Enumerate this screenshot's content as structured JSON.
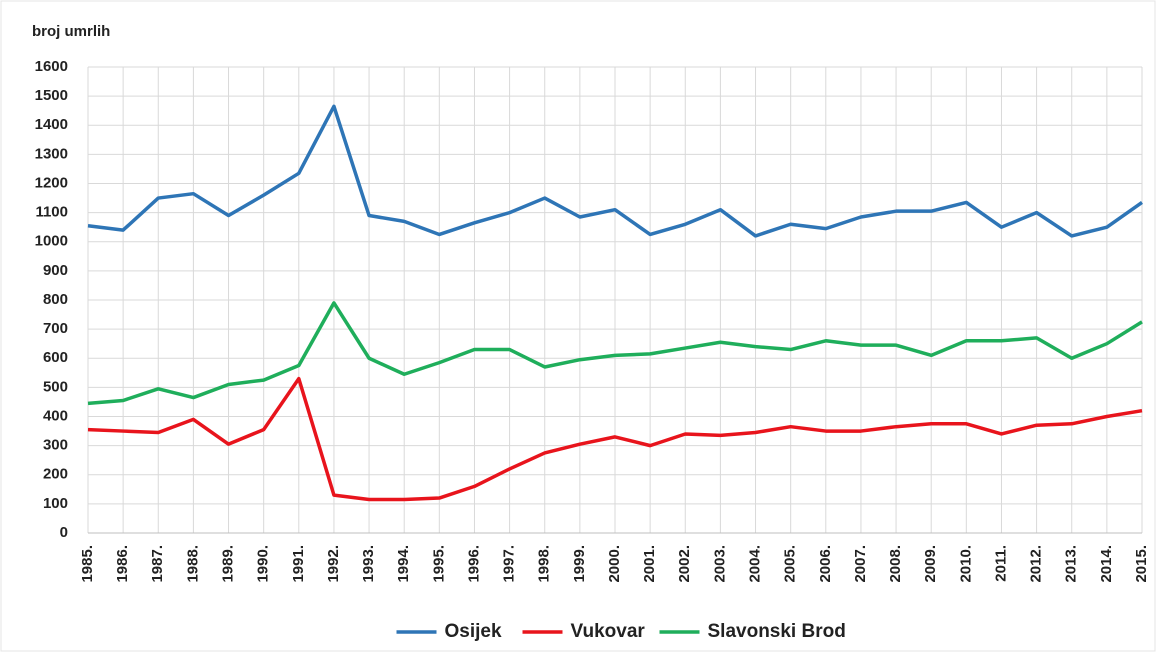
{
  "chart_data": {
    "type": "line",
    "y_label": "broj umrlih",
    "categories": [
      "1985.",
      "1986.",
      "1987.",
      "1988.",
      "1989.",
      "1990.",
      "1991.",
      "1992.",
      "1993.",
      "1994.",
      "1995.",
      "1996.",
      "1997.",
      "1998.",
      "1999.",
      "2000.",
      "2001.",
      "2002.",
      "2003.",
      "2004.",
      "2005.",
      "2006.",
      "2007.",
      "2008.",
      "2009.",
      "2010.",
      "2011.",
      "2012.",
      "2013.",
      "2014.",
      "2015."
    ],
    "series": [
      {
        "name": "Osijek",
        "color": "#2e75b6",
        "values": [
          1055,
          1040,
          1150,
          1165,
          1090,
          1160,
          1235,
          1465,
          1090,
          1070,
          1025,
          1065,
          1100,
          1150,
          1085,
          1110,
          1025,
          1060,
          1110,
          1020,
          1060,
          1045,
          1085,
          1105,
          1105,
          1135,
          1050,
          1100,
          1020,
          1050,
          1135
        ]
      },
      {
        "name": "Vukovar",
        "color": "#e8141c",
        "values": [
          355,
          350,
          345,
          390,
          305,
          355,
          530,
          130,
          115,
          115,
          120,
          160,
          220,
          275,
          305,
          330,
          300,
          340,
          335,
          345,
          365,
          350,
          350,
          365,
          375,
          375,
          340,
          370,
          375,
          400,
          420
        ]
      },
      {
        "name": "Slavonski Brod",
        "color": "#1fae5b",
        "values": [
          445,
          455,
          495,
          465,
          510,
          525,
          575,
          790,
          600,
          545,
          585,
          630,
          630,
          570,
          595,
          610,
          615,
          635,
          655,
          640,
          630,
          660,
          645,
          645,
          610,
          660,
          660,
          670,
          600,
          650,
          725
        ]
      }
    ],
    "ylim": [
      0,
      1600
    ],
    "yticks": [
      0,
      100,
      200,
      300,
      400,
      500,
      600,
      700,
      800,
      900,
      1000,
      1100,
      1200,
      1300,
      1400,
      1500,
      1600
    ],
    "grid": true
  }
}
